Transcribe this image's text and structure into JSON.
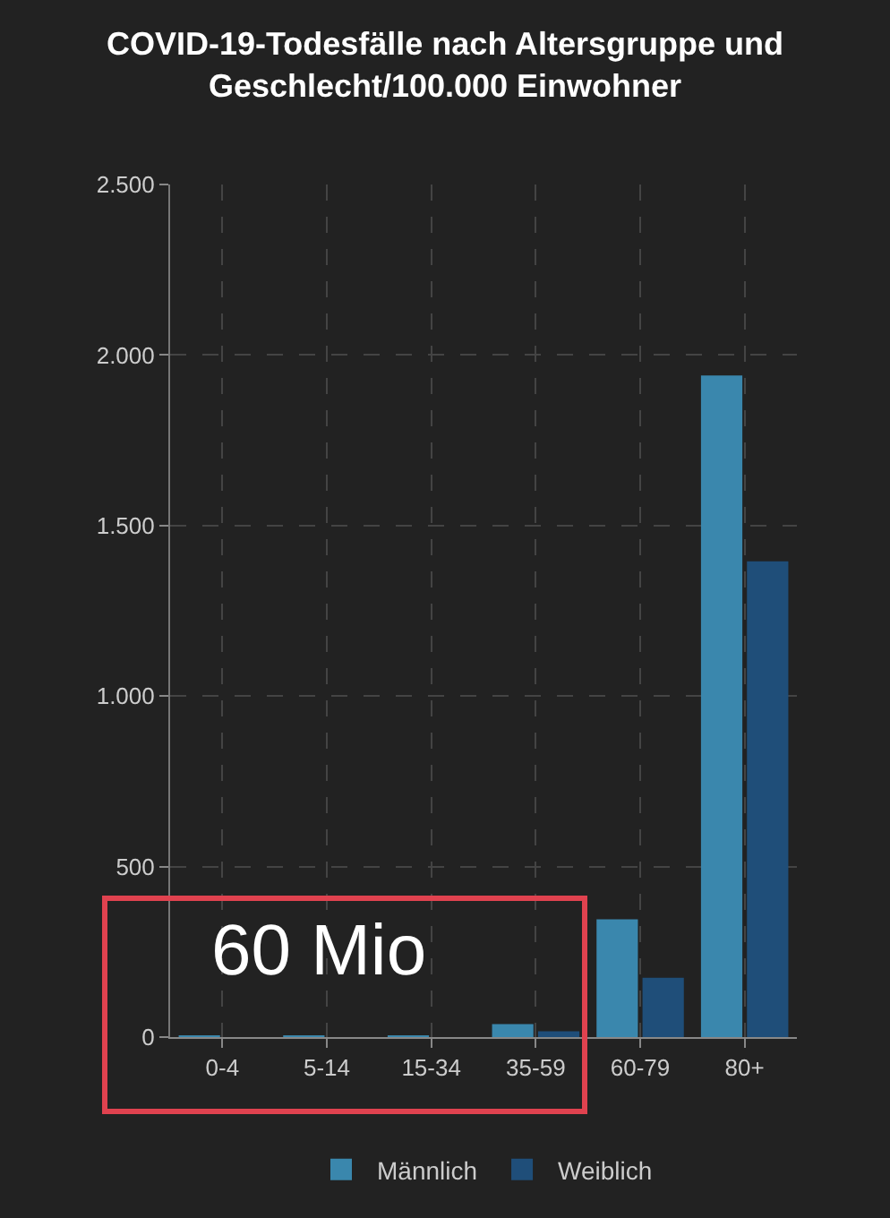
{
  "chart_data": {
    "type": "bar",
    "title": "COVID-19-Todesfälle nach Altersgruppe und Geschlecht/100.000 Einwohner",
    "categories": [
      "0-4",
      "5-14",
      "15-34",
      "35-59",
      "60-79",
      "80+"
    ],
    "series": [
      {
        "name": "Männlich",
        "color": "#3a87ad",
        "values": [
          1,
          1,
          2,
          38,
          345,
          1940
        ]
      },
      {
        "name": "Weiblich",
        "color": "#1f4e79",
        "values": [
          null,
          null,
          null,
          17,
          174,
          1395
        ]
      }
    ],
    "ylim": [
      0,
      2500
    ],
    "yticks": [
      0,
      500,
      {
        "value": 1000,
        "label": "1.000"
      },
      {
        "value": 1500,
        "label": "1.500"
      },
      {
        "value": 2000,
        "label": "2.000"
      },
      {
        "value": 2500,
        "label": "2.500"
      }
    ],
    "grid": true,
    "legend": "bottom",
    "annotations": [
      "60 Mio"
    ]
  }
}
